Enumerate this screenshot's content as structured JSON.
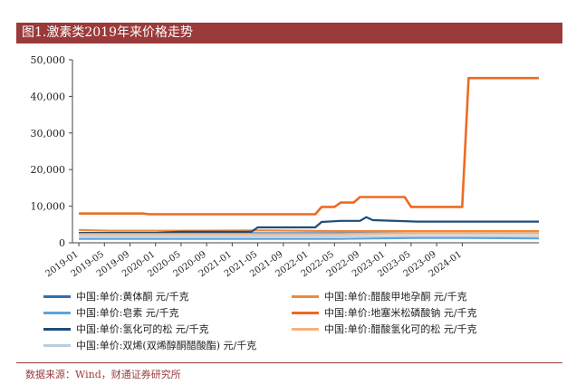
{
  "chart_data": {
    "type": "line",
    "title": "图1.激素类2019年来价格走势",
    "ylim": [
      0,
      50000
    ],
    "yticks": [
      "0",
      "10,000",
      "20,000",
      "30,000",
      "40,000",
      "50,000"
    ],
    "yticks_val": [
      0,
      10000,
      20000,
      30000,
      40000,
      50000
    ],
    "xlim": [
      "2018-12",
      "2025-01"
    ],
    "xticks": [
      "2019-01",
      "2019-05",
      "2019-09",
      "2020-01",
      "2020-05",
      "2020-09",
      "2021-01",
      "2021-05",
      "2021-09",
      "2022-01",
      "2022-05",
      "2022-09",
      "2023-01",
      "2023-05",
      "2023-09",
      "2024-01"
    ],
    "series": [
      {
        "name": "中国:单价:黄体酮 元/千克",
        "color": "#2e6fb8",
        "x": [
          "2019-01",
          "2025-01"
        ],
        "y": [
          2600,
          2600
        ]
      },
      {
        "name": "中国:单价:醋酸甲地孕酮 元/千克",
        "color": "#f0893a",
        "x": [
          "2019-01",
          "2019-06",
          "2020-01",
          "2021-06",
          "2022-06",
          "2025-01"
        ],
        "y": [
          3500,
          3300,
          3300,
          3400,
          3200,
          3200
        ]
      },
      {
        "name": "中国:单价:皂素 元/千克",
        "color": "#5ba3dc",
        "x": [
          "2019-01",
          "2022-06",
          "2023-06",
          "2024-01",
          "2025-01"
        ],
        "y": [
          1100,
          1100,
          1300,
          1300,
          1200
        ]
      },
      {
        "name": "中国:单价:地塞米松磷酸钠 元/千克",
        "color": "#ee6a22",
        "x": [
          "2019-01",
          "2019-05",
          "2019-06",
          "2019-11",
          "2019-12",
          "2022-02",
          "2022-03",
          "2022-05",
          "2022-06",
          "2022-08",
          "2022-09",
          "2023-04",
          "2023-05",
          "2024-01",
          "2024-02",
          "2025-01"
        ],
        "y": [
          8000,
          8000,
          8000,
          8000,
          7800,
          7800,
          9800,
          9800,
          11000,
          11000,
          12500,
          12500,
          9800,
          9800,
          45000,
          45000
        ]
      },
      {
        "name": "中国:单价:氢化可的松 元/千克",
        "color": "#1f4e7a",
        "x": [
          "2019-01",
          "2019-05",
          "2020-01",
          "2020-05",
          "2021-04",
          "2021-05",
          "2022-02",
          "2022-03",
          "2022-06",
          "2022-09",
          "2022-10",
          "2022-11",
          "2023-06",
          "2025-01"
        ],
        "y": [
          2700,
          2700,
          2700,
          3000,
          3000,
          4200,
          4200,
          5700,
          6000,
          6000,
          7000,
          6200,
          5800,
          5800
        ]
      },
      {
        "name": "中国:单价:醋酸氢化可的松 元/千克",
        "color": "#f5b27e",
        "x": [
          "2019-01",
          "2021-05",
          "2022-06",
          "2023-06",
          "2025-01"
        ],
        "y": [
          2400,
          2400,
          2400,
          2600,
          2600
        ]
      },
      {
        "name": "中国:单价:双烯(双烯醇酮醋酸酯) 元/千克",
        "color": "#b8cde0",
        "x": [
          "2019-01",
          "2025-01"
        ],
        "y": [
          1800,
          1800
        ]
      }
    ]
  },
  "source": "数据来源：Wind，财通证券研究所"
}
